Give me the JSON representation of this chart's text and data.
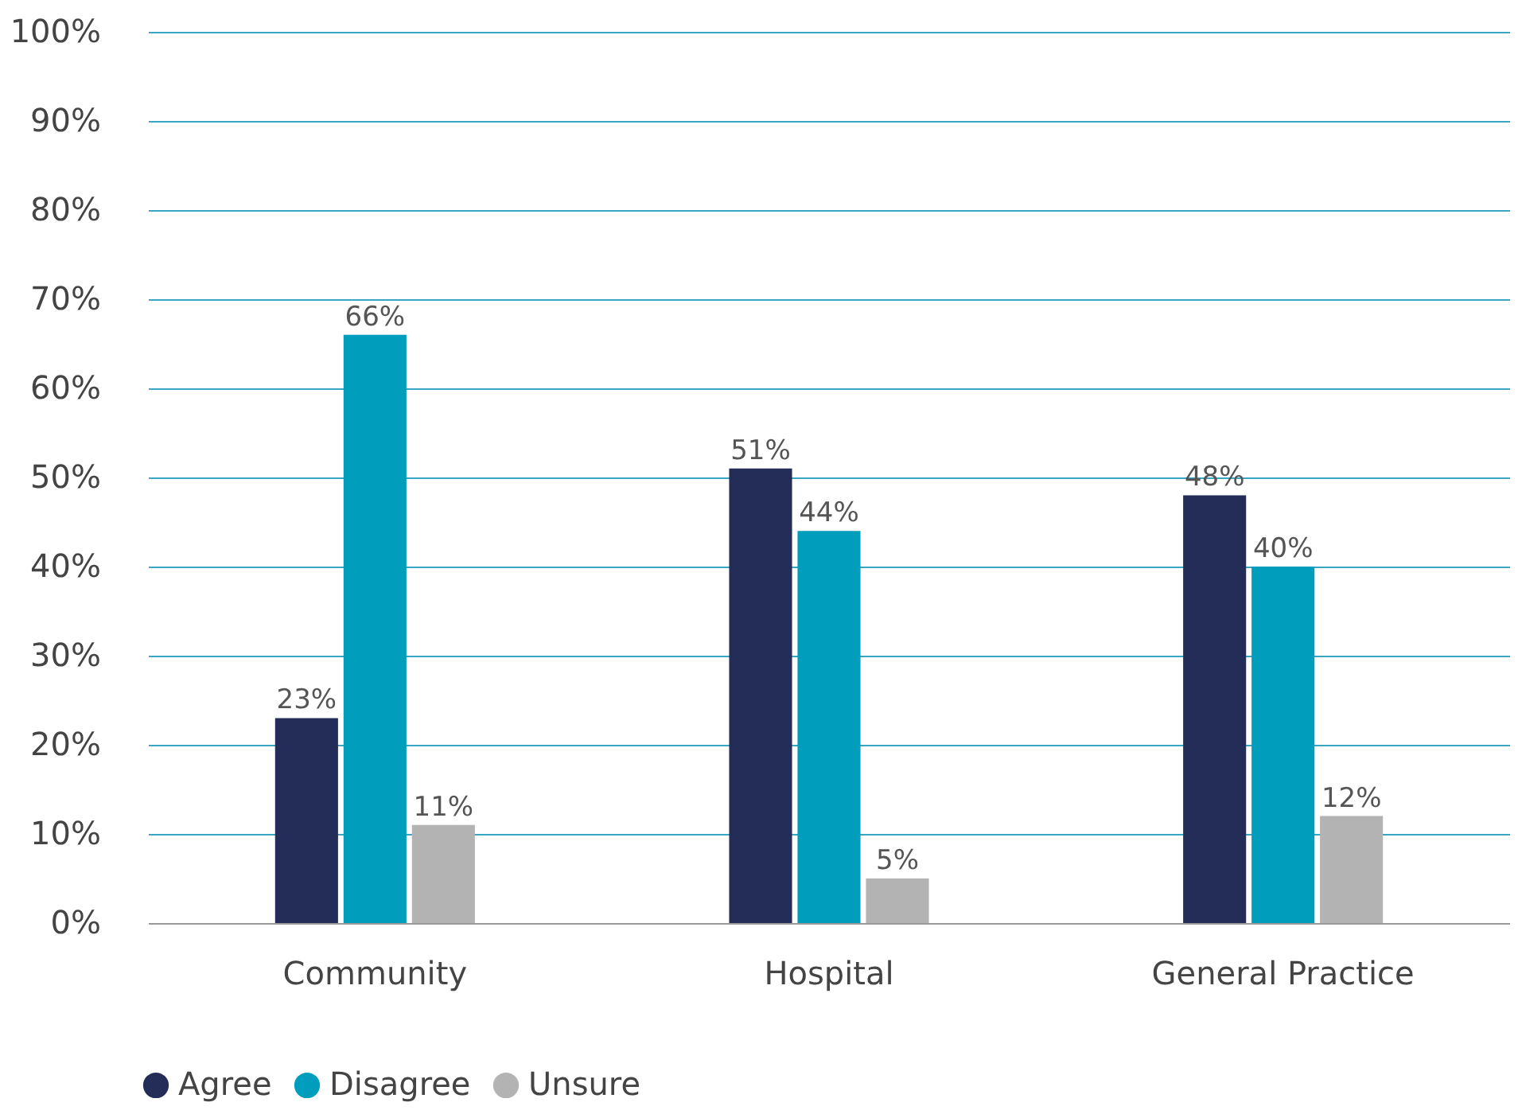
{
  "chart_data": {
    "type": "bar",
    "categories": [
      "Community",
      "Hospital",
      "General Practice"
    ],
    "series": [
      {
        "name": "Agree",
        "color": "#232d57",
        "values": [
          23,
          51,
          48
        ],
        "value_labels": [
          "23%",
          "51%",
          "48%"
        ]
      },
      {
        "name": "Disagree",
        "color": "#009dbd",
        "values": [
          66,
          44,
          40
        ],
        "value_labels": [
          "66%",
          "44%",
          "40%"
        ]
      },
      {
        "name": "Unsure",
        "color": "#b3b3b3",
        "values": [
          11,
          5,
          12
        ],
        "value_labels": [
          "11%",
          "5%",
          "12%"
        ]
      }
    ],
    "ylim": [
      0,
      100
    ],
    "yticks": [
      {
        "value": 0,
        "label": "0%"
      },
      {
        "value": 10,
        "label": "10%"
      },
      {
        "value": 20,
        "label": "20%"
      },
      {
        "value": 30,
        "label": "30%"
      },
      {
        "value": 40,
        "label": "40%"
      },
      {
        "value": 50,
        "label": "50%"
      },
      {
        "value": 60,
        "label": "60%"
      },
      {
        "value": 70,
        "label": "70%"
      },
      {
        "value": 80,
        "label": "80%"
      },
      {
        "value": 90,
        "label": "90%"
      },
      {
        "value": 100,
        "label": "100%"
      }
    ],
    "grid": "y",
    "legend": "bottom left"
  }
}
